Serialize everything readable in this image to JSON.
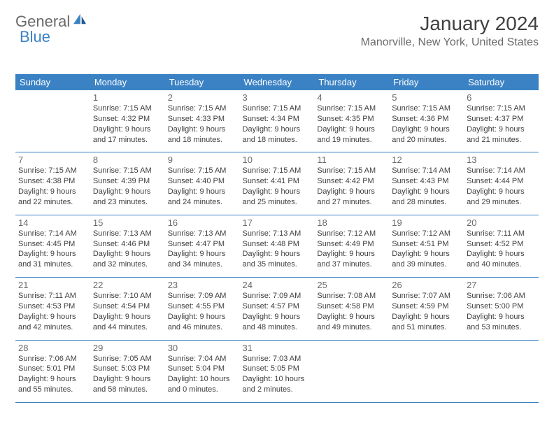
{
  "logo": {
    "part1": "General",
    "part2": "Blue"
  },
  "title": "January 2024",
  "location": "Manorville, New York, United States",
  "colors": {
    "header_bg": "#3b82c4",
    "header_text": "#ffffff",
    "row_border": "#3b82c4",
    "daynum_color": "#6a6a6a",
    "body_text": "#404040",
    "logo_grey": "#6a6a6a",
    "logo_blue": "#3b82c4",
    "page_bg": "#ffffff"
  },
  "typography": {
    "title_fontsize": 28,
    "location_fontsize": 16,
    "weekday_fontsize": 13,
    "daynum_fontsize": 13,
    "cell_fontsize": 11,
    "font_family": "Arial"
  },
  "weekdays": [
    "Sunday",
    "Monday",
    "Tuesday",
    "Wednesday",
    "Thursday",
    "Friday",
    "Saturday"
  ],
  "weeks": [
    [
      null,
      {
        "n": "1",
        "sunrise": "Sunrise: 7:15 AM",
        "sunset": "Sunset: 4:32 PM",
        "d1": "Daylight: 9 hours",
        "d2": "and 17 minutes."
      },
      {
        "n": "2",
        "sunrise": "Sunrise: 7:15 AM",
        "sunset": "Sunset: 4:33 PM",
        "d1": "Daylight: 9 hours",
        "d2": "and 18 minutes."
      },
      {
        "n": "3",
        "sunrise": "Sunrise: 7:15 AM",
        "sunset": "Sunset: 4:34 PM",
        "d1": "Daylight: 9 hours",
        "d2": "and 18 minutes."
      },
      {
        "n": "4",
        "sunrise": "Sunrise: 7:15 AM",
        "sunset": "Sunset: 4:35 PM",
        "d1": "Daylight: 9 hours",
        "d2": "and 19 minutes."
      },
      {
        "n": "5",
        "sunrise": "Sunrise: 7:15 AM",
        "sunset": "Sunset: 4:36 PM",
        "d1": "Daylight: 9 hours",
        "d2": "and 20 minutes."
      },
      {
        "n": "6",
        "sunrise": "Sunrise: 7:15 AM",
        "sunset": "Sunset: 4:37 PM",
        "d1": "Daylight: 9 hours",
        "d2": "and 21 minutes."
      }
    ],
    [
      {
        "n": "7",
        "sunrise": "Sunrise: 7:15 AM",
        "sunset": "Sunset: 4:38 PM",
        "d1": "Daylight: 9 hours",
        "d2": "and 22 minutes."
      },
      {
        "n": "8",
        "sunrise": "Sunrise: 7:15 AM",
        "sunset": "Sunset: 4:39 PM",
        "d1": "Daylight: 9 hours",
        "d2": "and 23 minutes."
      },
      {
        "n": "9",
        "sunrise": "Sunrise: 7:15 AM",
        "sunset": "Sunset: 4:40 PM",
        "d1": "Daylight: 9 hours",
        "d2": "and 24 minutes."
      },
      {
        "n": "10",
        "sunrise": "Sunrise: 7:15 AM",
        "sunset": "Sunset: 4:41 PM",
        "d1": "Daylight: 9 hours",
        "d2": "and 25 minutes."
      },
      {
        "n": "11",
        "sunrise": "Sunrise: 7:15 AM",
        "sunset": "Sunset: 4:42 PM",
        "d1": "Daylight: 9 hours",
        "d2": "and 27 minutes."
      },
      {
        "n": "12",
        "sunrise": "Sunrise: 7:14 AM",
        "sunset": "Sunset: 4:43 PM",
        "d1": "Daylight: 9 hours",
        "d2": "and 28 minutes."
      },
      {
        "n": "13",
        "sunrise": "Sunrise: 7:14 AM",
        "sunset": "Sunset: 4:44 PM",
        "d1": "Daylight: 9 hours",
        "d2": "and 29 minutes."
      }
    ],
    [
      {
        "n": "14",
        "sunrise": "Sunrise: 7:14 AM",
        "sunset": "Sunset: 4:45 PM",
        "d1": "Daylight: 9 hours",
        "d2": "and 31 minutes."
      },
      {
        "n": "15",
        "sunrise": "Sunrise: 7:13 AM",
        "sunset": "Sunset: 4:46 PM",
        "d1": "Daylight: 9 hours",
        "d2": "and 32 minutes."
      },
      {
        "n": "16",
        "sunrise": "Sunrise: 7:13 AM",
        "sunset": "Sunset: 4:47 PM",
        "d1": "Daylight: 9 hours",
        "d2": "and 34 minutes."
      },
      {
        "n": "17",
        "sunrise": "Sunrise: 7:13 AM",
        "sunset": "Sunset: 4:48 PM",
        "d1": "Daylight: 9 hours",
        "d2": "and 35 minutes."
      },
      {
        "n": "18",
        "sunrise": "Sunrise: 7:12 AM",
        "sunset": "Sunset: 4:49 PM",
        "d1": "Daylight: 9 hours",
        "d2": "and 37 minutes."
      },
      {
        "n": "19",
        "sunrise": "Sunrise: 7:12 AM",
        "sunset": "Sunset: 4:51 PM",
        "d1": "Daylight: 9 hours",
        "d2": "and 39 minutes."
      },
      {
        "n": "20",
        "sunrise": "Sunrise: 7:11 AM",
        "sunset": "Sunset: 4:52 PM",
        "d1": "Daylight: 9 hours",
        "d2": "and 40 minutes."
      }
    ],
    [
      {
        "n": "21",
        "sunrise": "Sunrise: 7:11 AM",
        "sunset": "Sunset: 4:53 PM",
        "d1": "Daylight: 9 hours",
        "d2": "and 42 minutes."
      },
      {
        "n": "22",
        "sunrise": "Sunrise: 7:10 AM",
        "sunset": "Sunset: 4:54 PM",
        "d1": "Daylight: 9 hours",
        "d2": "and 44 minutes."
      },
      {
        "n": "23",
        "sunrise": "Sunrise: 7:09 AM",
        "sunset": "Sunset: 4:55 PM",
        "d1": "Daylight: 9 hours",
        "d2": "and 46 minutes."
      },
      {
        "n": "24",
        "sunrise": "Sunrise: 7:09 AM",
        "sunset": "Sunset: 4:57 PM",
        "d1": "Daylight: 9 hours",
        "d2": "and 48 minutes."
      },
      {
        "n": "25",
        "sunrise": "Sunrise: 7:08 AM",
        "sunset": "Sunset: 4:58 PM",
        "d1": "Daylight: 9 hours",
        "d2": "and 49 minutes."
      },
      {
        "n": "26",
        "sunrise": "Sunrise: 7:07 AM",
        "sunset": "Sunset: 4:59 PM",
        "d1": "Daylight: 9 hours",
        "d2": "and 51 minutes."
      },
      {
        "n": "27",
        "sunrise": "Sunrise: 7:06 AM",
        "sunset": "Sunset: 5:00 PM",
        "d1": "Daylight: 9 hours",
        "d2": "and 53 minutes."
      }
    ],
    [
      {
        "n": "28",
        "sunrise": "Sunrise: 7:06 AM",
        "sunset": "Sunset: 5:01 PM",
        "d1": "Daylight: 9 hours",
        "d2": "and 55 minutes."
      },
      {
        "n": "29",
        "sunrise": "Sunrise: 7:05 AM",
        "sunset": "Sunset: 5:03 PM",
        "d1": "Daylight: 9 hours",
        "d2": "and 58 minutes."
      },
      {
        "n": "30",
        "sunrise": "Sunrise: 7:04 AM",
        "sunset": "Sunset: 5:04 PM",
        "d1": "Daylight: 10 hours",
        "d2": "and 0 minutes."
      },
      {
        "n": "31",
        "sunrise": "Sunrise: 7:03 AM",
        "sunset": "Sunset: 5:05 PM",
        "d1": "Daylight: 10 hours",
        "d2": "and 2 minutes."
      },
      null,
      null,
      null
    ]
  ]
}
